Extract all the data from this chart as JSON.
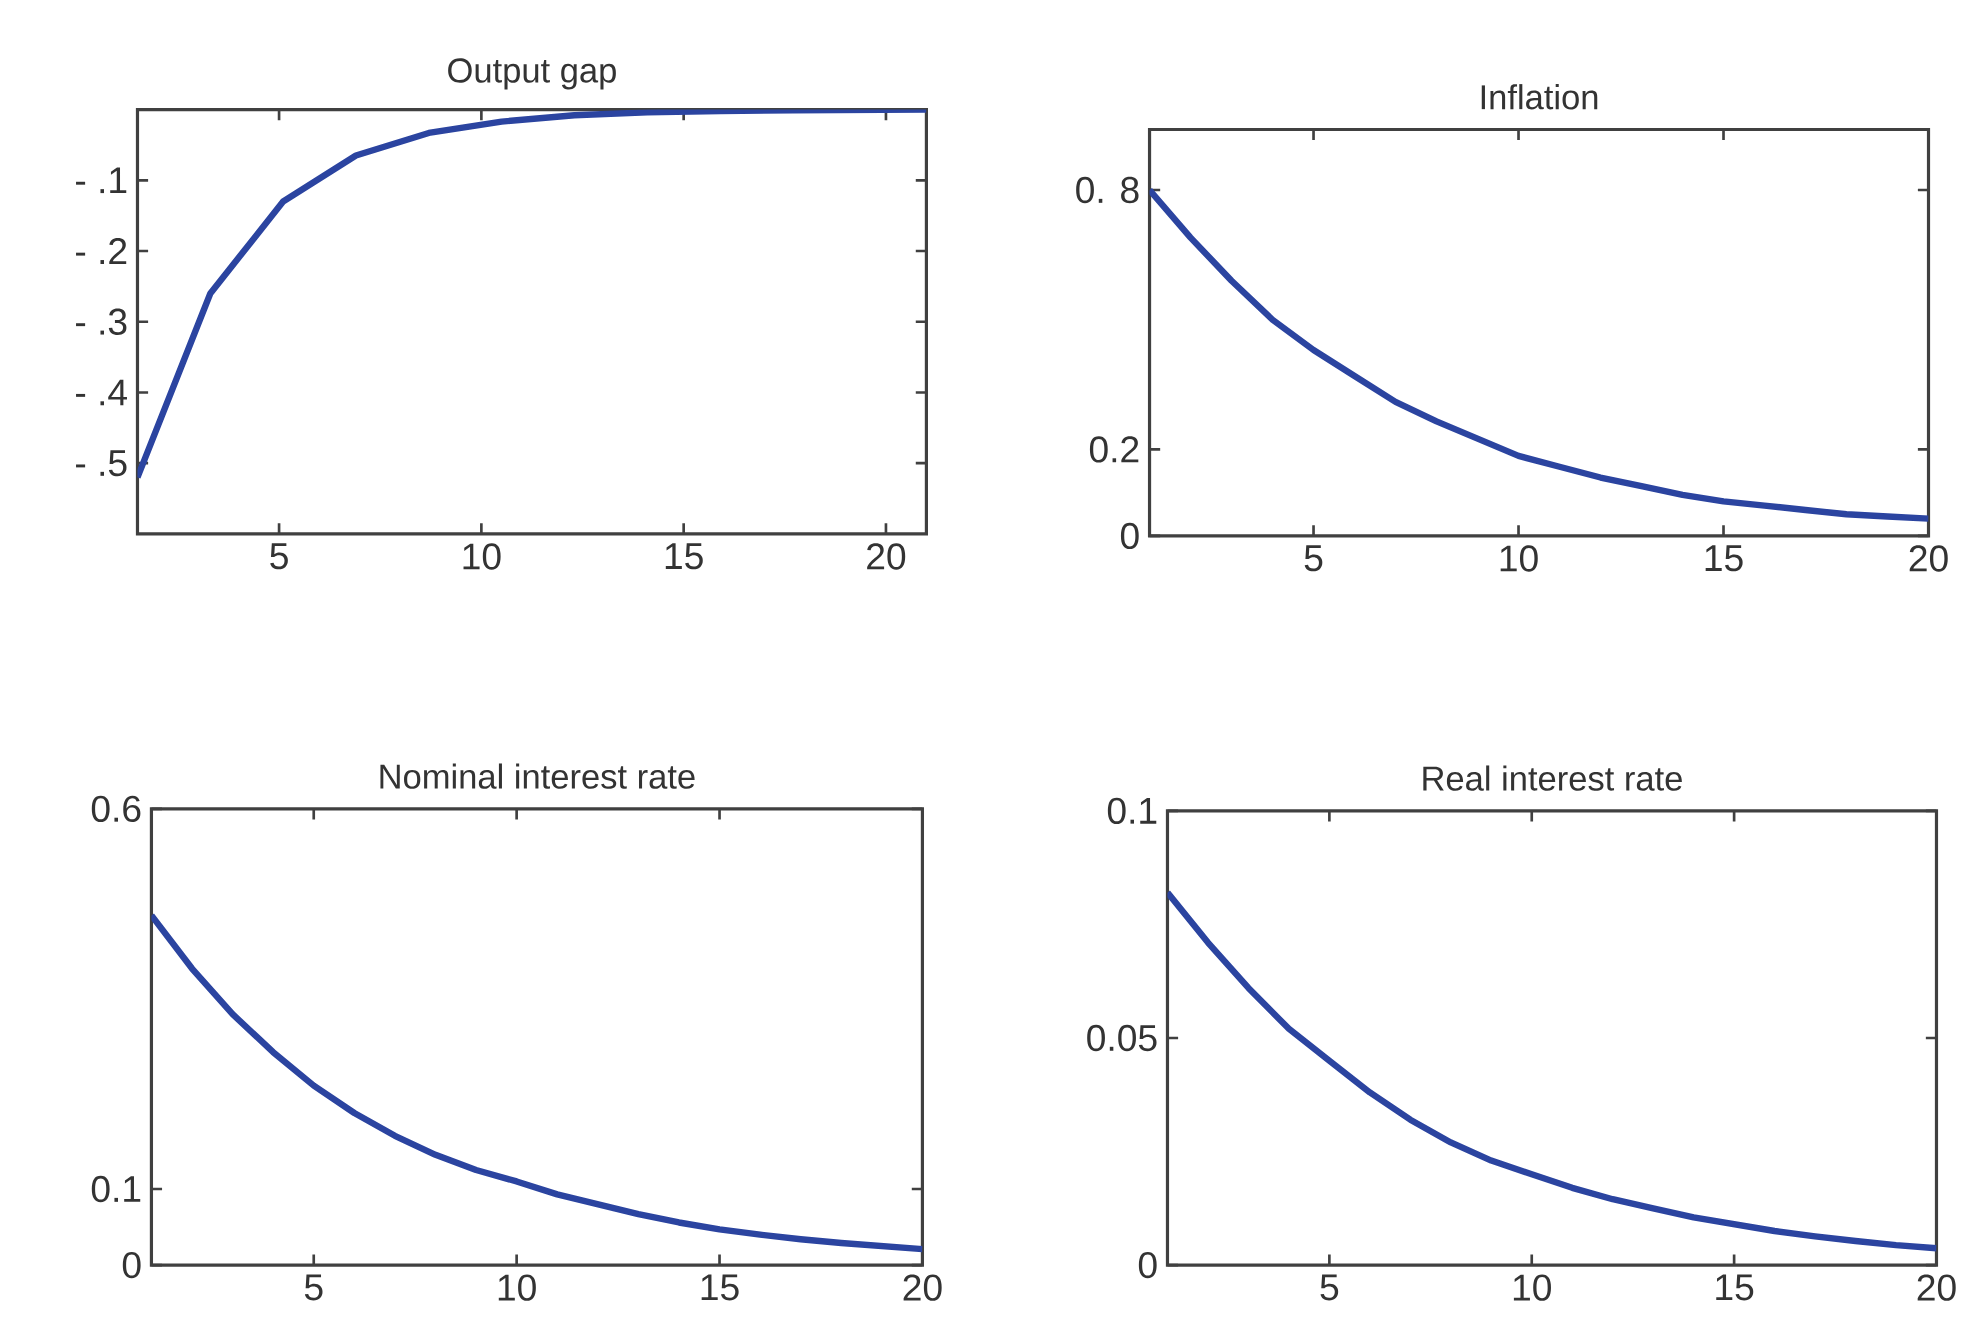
{
  "chart_data": [
    {
      "type": "line",
      "title": "Output gap",
      "color": "#2b44a0",
      "xlim": [
        1.5,
        21
      ],
      "xticks": [
        5,
        10,
        15,
        20
      ],
      "ylim": [
        -0.6,
        0
      ],
      "yticks": [
        {
          "value": -0.1,
          "label": "- .1"
        },
        {
          "value": -0.2,
          "label": "- .2"
        },
        {
          "value": -0.3,
          "label": "- .3"
        },
        {
          "value": -0.4,
          "label": "- .4"
        },
        {
          "value": -0.5,
          "label": "- .5"
        }
      ],
      "x": [
        1.5,
        3.3,
        5.1,
        6.9,
        8.7,
        10.5,
        12.3,
        14.1,
        15.9,
        17.7,
        21
      ],
      "values": [
        -0.52,
        -0.26,
        -0.13,
        -0.065,
        -0.033,
        -0.017,
        -0.008,
        -0.004,
        -0.002,
        -0.001,
        0
      ]
    },
    {
      "type": "line",
      "title": "Inflation",
      "color": "#2b44a0",
      "xlim": [
        1,
        20
      ],
      "xticks": [
        5,
        10,
        15,
        20
      ],
      "ylim": [
        0,
        0.94
      ],
      "yticks": [
        0,
        0.2,
        {
          "value": 0.8,
          "label": "0. 8"
        }
      ],
      "x": [
        1,
        2,
        3,
        4,
        5,
        6,
        7,
        8,
        9,
        10,
        11,
        12,
        13,
        14,
        15,
        16,
        17,
        18,
        19,
        20
      ],
      "values": [
        0.8,
        0.69,
        0.59,
        0.5,
        0.43,
        0.37,
        0.31,
        0.265,
        0.225,
        0.185,
        0.16,
        0.135,
        0.115,
        0.095,
        0.08,
        0.07,
        0.06,
        0.05,
        0.045,
        0.04
      ]
    },
    {
      "type": "line",
      "title": "Nominal interest rate",
      "color": "#2b44a0",
      "xlim": [
        1,
        20
      ],
      "xticks": [
        5,
        10,
        15,
        20
      ],
      "ylim": [
        0,
        0.6
      ],
      "yticks": [
        0,
        0.1,
        0.6
      ],
      "x": [
        1,
        2,
        3,
        4,
        5,
        6,
        7,
        8,
        9,
        10,
        11,
        12,
        13,
        14,
        15,
        16,
        17,
        18,
        19,
        20
      ],
      "values": [
        0.46,
        0.39,
        0.33,
        0.28,
        0.236,
        0.2,
        0.17,
        0.145,
        0.125,
        0.11,
        0.093,
        0.08,
        0.067,
        0.056,
        0.047,
        0.04,
        0.034,
        0.029,
        0.025,
        0.021
      ]
    },
    {
      "type": "line",
      "title": "Real interest rate",
      "color": "#2b44a0",
      "xlim": [
        1,
        20
      ],
      "xticks": [
        5,
        10,
        15,
        20
      ],
      "ylim": [
        0,
        0.1
      ],
      "yticks": [
        0,
        0.05,
        0.1
      ],
      "x": [
        1,
        2,
        3,
        4,
        5,
        6,
        7,
        8,
        9,
        10,
        11,
        12,
        13,
        14,
        15,
        16,
        17,
        18,
        19,
        20
      ],
      "values": [
        0.082,
        0.071,
        0.061,
        0.052,
        0.045,
        0.038,
        0.032,
        0.027,
        0.023,
        0.02,
        0.017,
        0.0145,
        0.0125,
        0.0105,
        0.009,
        0.0075,
        0.0063,
        0.0053,
        0.0044,
        0.0037
      ]
    }
  ]
}
